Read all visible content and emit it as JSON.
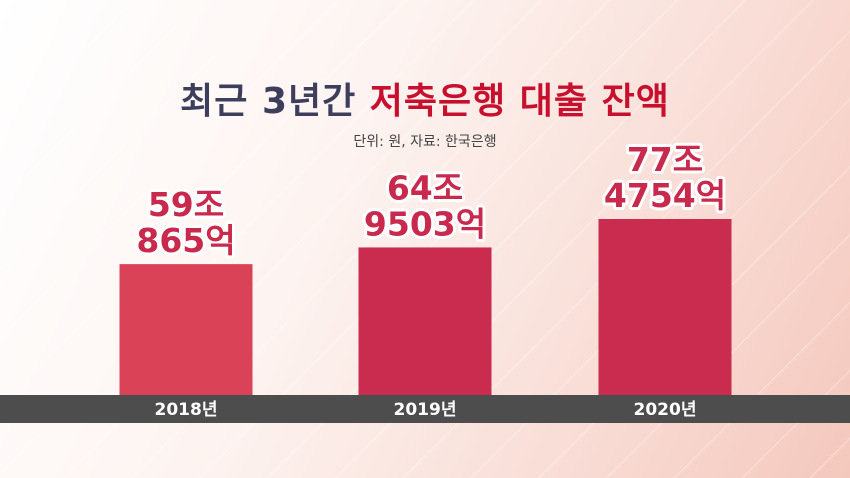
{
  "title": {
    "part1": "최근 3년간 ",
    "part2": "저축은행 대출 잔액"
  },
  "subtitle": "단위: 원, 자료: 한국은행",
  "colors": {
    "bar_light": "#d94257",
    "bar": "#c92c4f",
    "label": "#c8294c",
    "title_dark": "#3d3d5c",
    "title_red": "#c8102e",
    "axis_band": "#4d4d4d"
  },
  "chart_data": {
    "type": "bar",
    "categories": [
      "2018년",
      "2019년",
      "2020년"
    ],
    "values": [
      59.0865,
      64.9503,
      77.4754
    ],
    "value_labels": [
      [
        "59조",
        "865억"
      ],
      [
        "64조",
        "9503억"
      ],
      [
        "77조",
        "4754억"
      ]
    ],
    "unit": "원",
    "ylim": [
      0,
      100
    ],
    "grid": false,
    "legend": "none"
  }
}
